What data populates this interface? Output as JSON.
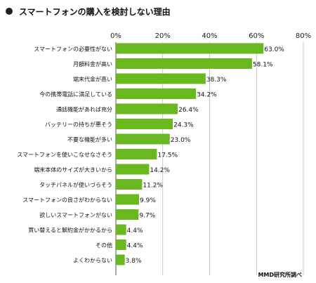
{
  "chart_data": {
    "type": "bar",
    "orientation": "horizontal",
    "title": "スマートフォンの購入を検討しない理由",
    "categories": [
      "スマートフォンの必要性がない",
      "月額料金が高い",
      "端末代金が高い",
      "今の携帯電話に満足している",
      "通話機能があれば充分",
      "バッテリーの持ちが悪そう",
      "不要な機能が多い",
      "スマートフォンを使いこなせなさそう",
      "端末本体のサイズが大きいから",
      "タッチパネルが使いづらそう",
      "スマートフォンの良さがわからない",
      "欲しいスマートフォンがない",
      "買い替えると解約金がかかるから",
      "その他",
      "よくわからない"
    ],
    "values": [
      63.0,
      58.1,
      38.3,
      34.2,
      26.4,
      24.3,
      23.0,
      17.5,
      14.2,
      11.2,
      9.9,
      9.7,
      4.4,
      4.4,
      3.8
    ],
    "value_labels": [
      "63.0%",
      "58.1%",
      "38.3%",
      "34.2%",
      "26.4%",
      "24.3%",
      "23.0%",
      "17.5%",
      "14.2%",
      "11.2%",
      "9.9%",
      "9.7%",
      "4.4%",
      "4.4%",
      "3.8%"
    ],
    "xlim": [
      0,
      80
    ],
    "xticks": [
      0,
      20,
      40,
      60,
      80
    ],
    "xtick_labels": [
      "0%",
      "20%",
      "40%",
      "60%",
      "80%"
    ],
    "grid": true,
    "bar_color": "#6ab820",
    "source": "MMD研究所調べ"
  }
}
